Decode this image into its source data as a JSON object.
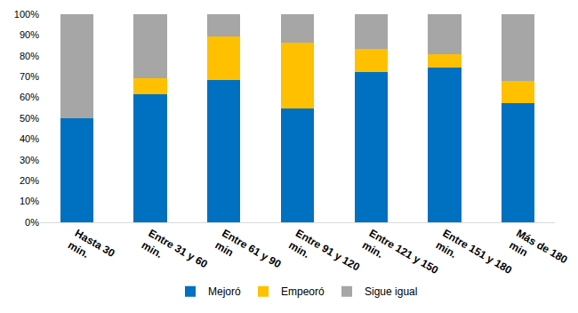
{
  "chart_data": {
    "type": "bar",
    "stacked": true,
    "categories": [
      "Hasta 30 min.",
      "Entre 31 y 60 min.",
      "Entre 61 y 90 min",
      "Entre 91 y 120 min.",
      "Entre 121 y 150 min.",
      "Entre 151 y 180 min.",
      "Más de 180 min"
    ],
    "series": [
      {
        "name": "Mejoró",
        "color": "#0070c0",
        "values": [
          50,
          61.5,
          68.4,
          54.5,
          72.2,
          74.2,
          57.1
        ]
      },
      {
        "name": "Empeoró",
        "color": "#ffc000",
        "values": [
          0,
          7.7,
          21.1,
          31.8,
          11.1,
          6.4,
          10.7
        ]
      },
      {
        "name": "Sigue igual",
        "color": "#a6a6a6",
        "values": [
          50,
          30.8,
          10.5,
          13.7,
          16.7,
          19.4,
          32.2
        ]
      }
    ],
    "ylim": [
      0,
      100
    ],
    "yticks": [
      {
        "value": 0,
        "label": "0%"
      },
      {
        "value": 10,
        "label": "10%"
      },
      {
        "value": 20,
        "label": "20%"
      },
      {
        "value": 30,
        "label": "30%"
      },
      {
        "value": 40,
        "label": "40%"
      },
      {
        "value": 50,
        "label": "50%"
      },
      {
        "value": 60,
        "label": "60%"
      },
      {
        "value": 70,
        "label": "70%"
      },
      {
        "value": 80,
        "label": "80%"
      },
      {
        "value": 90,
        "label": "90%"
      },
      {
        "value": 100,
        "label": "100%"
      }
    ],
    "grid": false,
    "legend": "bottom"
  }
}
